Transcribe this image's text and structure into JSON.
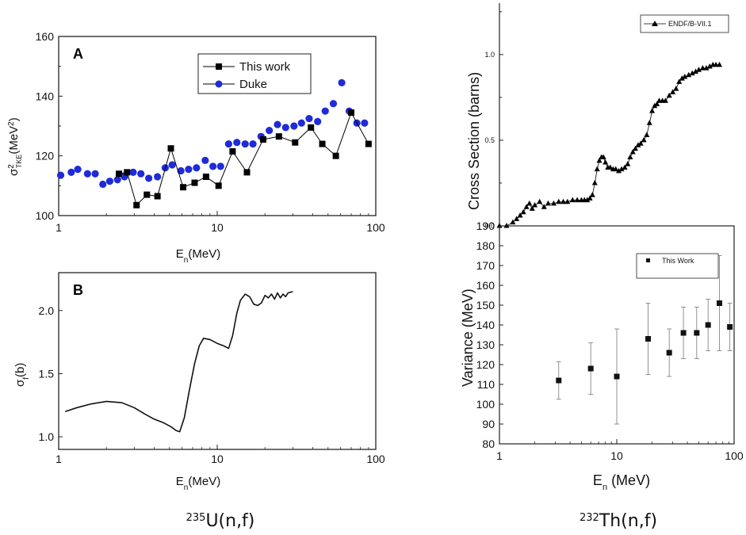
{
  "chart_data": [
    {
      "id": "panelA",
      "type": "scatter",
      "panel_label": "A",
      "xscale": "log",
      "xlim": [
        1,
        100
      ],
      "ylim": [
        100,
        160
      ],
      "xticks": [
        "1",
        "10",
        "100"
      ],
      "yticks": [
        "100",
        "120",
        "140",
        "160"
      ],
      "xlabel": "E",
      "xlabel_sub": "n",
      "xlabel_tail": "(MeV)",
      "ylabel": "σ",
      "ylabel_sup": "2",
      "ylabel_sub": "TKE",
      "ylabel_tail": "(MeV",
      "ylabel_unit_sup": "2",
      "ylabel_close": ")",
      "legend": [
        "This work",
        "Duke"
      ],
      "series": [
        {
          "name": "This work",
          "marker": "square",
          "color": "#000000",
          "connected": true,
          "x": [
            2.4,
            2.7,
            3.1,
            3.6,
            4.2,
            5.1,
            6.1,
            7.2,
            8.5,
            10.2,
            12.5,
            15.4,
            19.5,
            24.5,
            31,
            39,
            46,
            56,
            70,
            90
          ],
          "y": [
            114,
            114.5,
            103.5,
            107,
            106.5,
            122.5,
            109.5,
            111,
            113,
            110,
            121.5,
            114.5,
            125.5,
            126.5,
            124.5,
            129.5,
            124,
            120,
            134.5,
            124
          ]
        },
        {
          "name": "Duke",
          "marker": "circle",
          "color": "#1f2bd6",
          "connected": false,
          "x": [
            1.03,
            1.2,
            1.32,
            1.52,
            1.7,
            1.9,
            2.1,
            2.35,
            2.6,
            2.95,
            3.3,
            3.7,
            4.2,
            4.7,
            5.2,
            5.9,
            6.6,
            7.4,
            8.4,
            9.4,
            10.5,
            11.8,
            13.3,
            15,
            16.8,
            18.9,
            21.3,
            24,
            27,
            30.5,
            34,
            38,
            43,
            48,
            54,
            61,
            68,
            76,
            85
          ],
          "y": [
            113.5,
            114.5,
            115.5,
            114,
            114,
            110.5,
            111.5,
            112,
            113,
            114.5,
            114,
            112.5,
            113,
            116,
            117,
            115,
            115.5,
            116,
            118.5,
            116.5,
            116.5,
            124,
            124.5,
            124,
            124,
            126.5,
            128.5,
            130.5,
            129.5,
            130,
            131,
            132.5,
            131.5,
            135,
            137.5,
            144.5,
            135,
            131,
            131
          ]
        }
      ]
    },
    {
      "id": "panelB",
      "type": "line",
      "panel_label": "B",
      "xscale": "log",
      "xlim": [
        1,
        100
      ],
      "ylim": [
        0.9,
        2.3
      ],
      "xticks": [
        "1",
        "10",
        "100"
      ],
      "yticks": [
        "1.0",
        "1.5",
        "2.0"
      ],
      "xlabel": "E",
      "xlabel_sub": "n",
      "xlabel_tail": "(MeV)",
      "ylabel": "σ",
      "ylabel_sub": "f",
      "ylabel_tail": "(b)",
      "series": [
        {
          "name": "sigma_f 235U",
          "color": "#111111",
          "x": [
            1.1,
            1.3,
            1.6,
            2.0,
            2.5,
            3.0,
            3.5,
            4.0,
            4.6,
            5.1,
            5.5,
            5.8,
            6.2,
            6.7,
            7.2,
            7.7,
            8.2,
            9.0,
            10.0,
            11.0,
            11.8,
            12.5,
            13.3,
            14.0,
            15.0,
            16.0,
            17.0,
            18.0,
            19.0,
            20.0,
            21.0,
            22.0,
            23.0,
            24.0,
            25.0,
            26.0,
            27.0,
            28.0,
            30.0
          ],
          "y": [
            1.2,
            1.23,
            1.26,
            1.28,
            1.27,
            1.23,
            1.18,
            1.14,
            1.11,
            1.08,
            1.05,
            1.04,
            1.15,
            1.38,
            1.58,
            1.72,
            1.78,
            1.77,
            1.74,
            1.72,
            1.7,
            1.8,
            1.98,
            2.08,
            2.13,
            2.11,
            2.05,
            2.04,
            2.06,
            2.12,
            2.1,
            2.13,
            2.09,
            2.14,
            2.1,
            2.13,
            2.11,
            2.14,
            2.15
          ]
        }
      ]
    },
    {
      "id": "panelC",
      "type": "scatter",
      "xscale": "log",
      "xlim": [
        1,
        100
      ],
      "ylim": [
        0,
        1.3
      ],
      "yticks": [
        "0.0",
        "0.5",
        "1.0"
      ],
      "ylabel": "Cross Section (barns)",
      "legend": [
        "ENDF/B-VII.1"
      ],
      "series": [
        {
          "name": "ENDF/B-VII.1",
          "marker": "triangle",
          "color": "#000000",
          "connected": true,
          "x": [
            1.0,
            1.15,
            1.3,
            1.4,
            1.5,
            1.6,
            1.7,
            1.8,
            1.9,
            2.0,
            2.2,
            2.4,
            2.6,
            2.9,
            3.2,
            3.5,
            3.8,
            4.2,
            4.6,
            5.0,
            5.3,
            5.6,
            5.9,
            6.2,
            6.5,
            6.8,
            7.1,
            7.4,
            7.7,
            8.0,
            8.4,
            8.8,
            9.3,
            9.8,
            10.4,
            11.0,
            11.7,
            12.4,
            13.0,
            13.7,
            14.4,
            15.2,
            16.0,
            17.0,
            18.0,
            19.0,
            20.0,
            21.0,
            22.0,
            23.0,
            24.5,
            26.0,
            28.0,
            30.0,
            32.0,
            34.0,
            36.0,
            38.0,
            41.0,
            44.0,
            47.0,
            50.0,
            54.0,
            58.0,
            62.0,
            66.0,
            70.0,
            75.0
          ],
          "y": [
            0.0,
            0.0,
            0.02,
            0.04,
            0.06,
            0.08,
            0.11,
            0.13,
            0.1,
            0.12,
            0.14,
            0.11,
            0.13,
            0.13,
            0.14,
            0.14,
            0.14,
            0.15,
            0.15,
            0.15,
            0.15,
            0.15,
            0.16,
            0.18,
            0.25,
            0.33,
            0.38,
            0.4,
            0.4,
            0.37,
            0.34,
            0.34,
            0.33,
            0.33,
            0.32,
            0.33,
            0.34,
            0.36,
            0.4,
            0.43,
            0.45,
            0.47,
            0.48,
            0.5,
            0.53,
            0.6,
            0.67,
            0.7,
            0.71,
            0.73,
            0.73,
            0.73,
            0.76,
            0.78,
            0.8,
            0.84,
            0.86,
            0.87,
            0.88,
            0.89,
            0.9,
            0.91,
            0.92,
            0.92,
            0.93,
            0.94,
            0.94,
            0.94
          ]
        }
      ]
    },
    {
      "id": "panelD",
      "type": "scatter",
      "xscale": "log",
      "xlim": [
        1,
        100
      ],
      "ylim": [
        80,
        190
      ],
      "xticks": [
        "1",
        "10",
        "100"
      ],
      "yticks": [
        "80",
        "90",
        "100",
        "110",
        "120",
        "130",
        "140",
        "150",
        "160",
        "170",
        "180",
        "190"
      ],
      "xlabel": "E",
      "xlabel_sub": "n",
      "xlabel_tail": " (MeV)",
      "ylabel": "Variance (MeV)",
      "legend": [
        "This Work"
      ],
      "series": [
        {
          "name": "This Work",
          "marker": "square",
          "color": "#111111",
          "connected": false,
          "x": [
            3.2,
            6.0,
            10.0,
            18.5,
            28.0,
            37.0,
            48.0,
            60.0,
            75.0,
            92.0
          ],
          "y": [
            112,
            118,
            114,
            133,
            126,
            136,
            136,
            140,
            151,
            139
          ],
          "err": [
            9.5,
            13,
            24,
            18,
            12,
            13,
            13,
            13,
            24,
            12
          ]
        }
      ]
    }
  ],
  "captions": {
    "left": {
      "sup": "235",
      "text": "U(n,f)"
    },
    "right": {
      "sup": "232",
      "text": "Th(n,f)"
    }
  },
  "colors": {
    "duke_blue": "#1f2bd6",
    "axis": "#222222"
  }
}
